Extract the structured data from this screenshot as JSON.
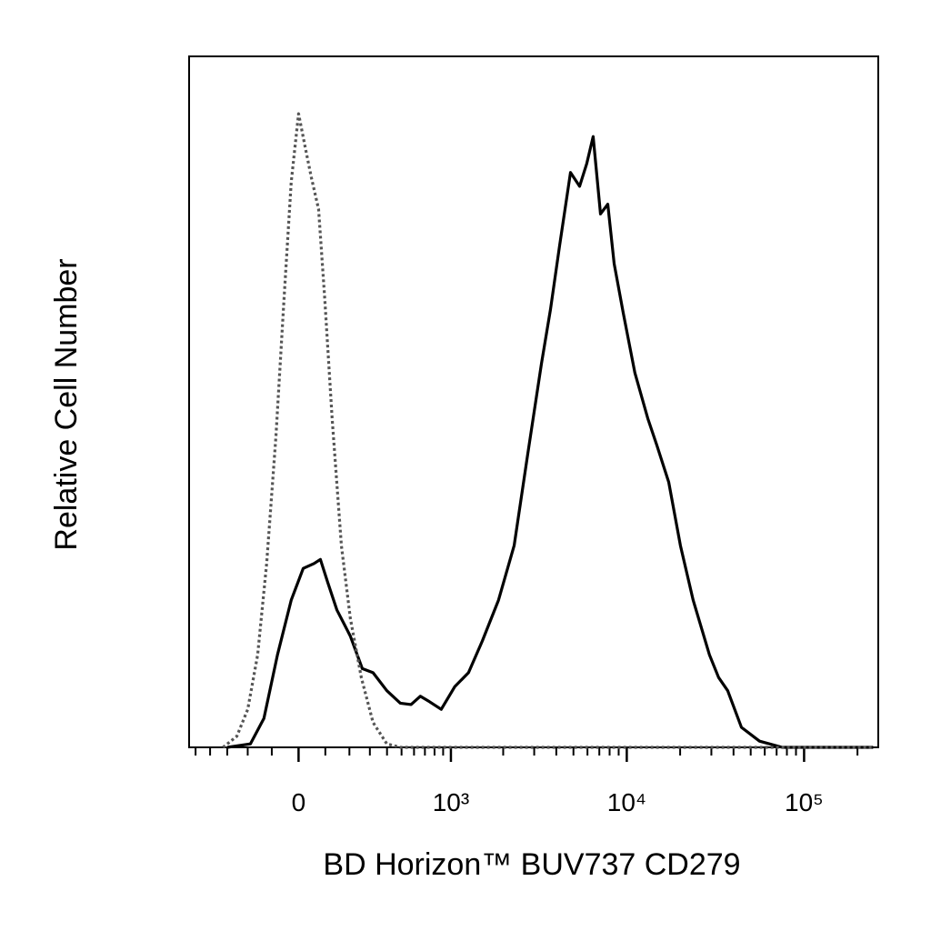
{
  "chart_data": {
    "type": "line",
    "xscale": "biexponential",
    "xlabel": "BD Horizon™ BUV737 CD279",
    "ylabel": "Relative Cell Number",
    "xlim": [
      -550,
      262000
    ],
    "ylim": [
      0,
      100
    ],
    "xticks": [
      0,
      {
        "value": 1000,
        "label": "10³"
      },
      {
        "value": 10000,
        "label": "10⁴"
      },
      {
        "value": 100000,
        "label": "10⁵"
      }
    ],
    "xminorticks": [
      -500,
      -400,
      -300,
      -200,
      -100,
      100,
      200,
      300,
      400,
      500,
      600,
      700,
      800,
      900,
      2000,
      3000,
      4000,
      5000,
      6000,
      7000,
      8000,
      9000,
      20000,
      30000,
      40000,
      50000,
      60000,
      70000,
      80000,
      90000,
      200000
    ],
    "series": [
      {
        "color": "#000000",
        "style": "solid",
        "x": [
          -299,
          -188,
          -131,
          -78,
          -27,
          17,
          57,
          81,
          109,
          146,
          204,
          261,
          317,
          399,
          491,
          575,
          656,
          746,
          877,
          1055,
          1266,
          1520,
          1881,
          2307,
          2755,
          3294,
          3708,
          4174,
          4811,
          5417,
          5950,
          6458,
          7106,
          7811,
          8488,
          9560,
          11111,
          13141,
          14777,
          17230,
          20078,
          23688,
          29272,
          32966,
          37111,
          44302,
          56090,
          75294,
          245340
        ],
        "values": [
          0,
          0.5,
          4.2,
          13.4,
          21.3,
          25.9,
          26.6,
          27.2,
          23.9,
          19.9,
          16.1,
          11.4,
          10.8,
          8.2,
          6.4,
          6.2,
          7.4,
          6.6,
          5.5,
          8.8,
          10.8,
          15.4,
          21.3,
          29.2,
          42.4,
          55.5,
          63.4,
          72.6,
          83.2,
          81.2,
          84.5,
          88.4,
          77.2,
          78.6,
          70,
          62.8,
          54.2,
          47.6,
          43.7,
          38.4,
          29.2,
          21.3,
          13.4,
          10.1,
          8.2,
          2.9,
          0.9,
          0,
          0
        ]
      },
      {
        "color": "#555555",
        "style": "dotted",
        "x": [
          -323,
          -251,
          -200,
          -157,
          -120,
          -84,
          -54,
          -27,
          0,
          23,
          47,
          74,
          98,
          127,
          165,
          204,
          256,
          317,
          399,
          491,
          245000
        ],
        "values": [
          0,
          1.6,
          5.5,
          13.4,
          26.6,
          45,
          64.7,
          81.8,
          91.7,
          87.1,
          82.5,
          77.9,
          64.7,
          47.6,
          29.2,
          18.7,
          10.1,
          3.6,
          0.5,
          0,
          0
        ]
      }
    ]
  }
}
